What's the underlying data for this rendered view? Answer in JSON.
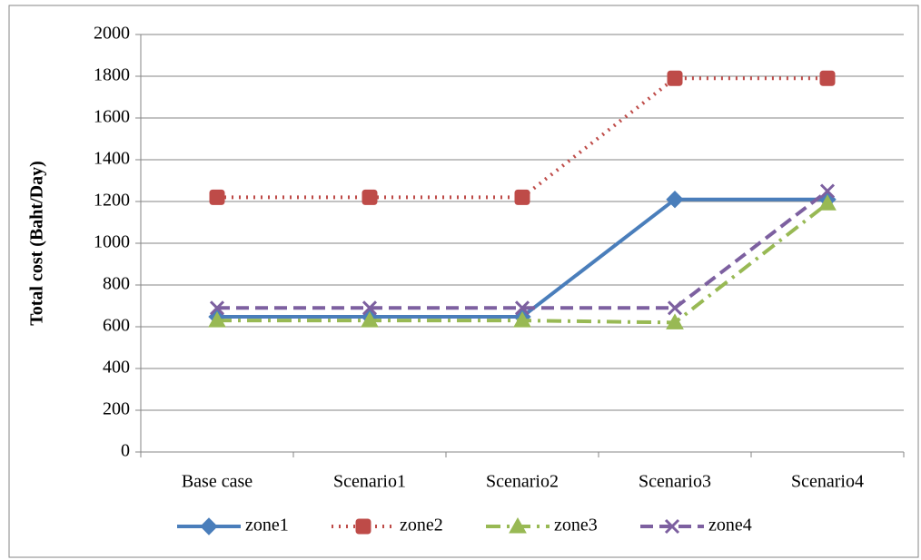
{
  "chart_data": {
    "type": "line",
    "ylabel": "Total cost (Baht/Day)",
    "categories": [
      "Base case",
      "Scenario1",
      "Scenario2",
      "Scenario3",
      "Scenario4"
    ],
    "series": [
      {
        "name": "zone1",
        "color": "#4a7ebb",
        "line_style": "solid",
        "marker": "diamond",
        "values": [
          648,
          648,
          648,
          1210,
          1210
        ]
      },
      {
        "name": "zone2",
        "color": "#be4b48",
        "line_style": "dotted",
        "marker": "square",
        "values": [
          1220,
          1220,
          1220,
          1790,
          1790
        ]
      },
      {
        "name": "zone3",
        "color": "#98b954",
        "line_style": "dash-dot",
        "marker": "triangle",
        "values": [
          630,
          630,
          630,
          620,
          1190
        ]
      },
      {
        "name": "zone4",
        "color": "#7d60a0",
        "line_style": "dashed",
        "marker": "x",
        "values": [
          690,
          690,
          690,
          690,
          1250
        ]
      }
    ],
    "ylim": [
      0,
      2000
    ],
    "yticks": [
      0,
      200,
      400,
      600,
      800,
      1000,
      1200,
      1400,
      1600,
      1800,
      2000
    ],
    "grid": true,
    "legend": "bottom"
  }
}
